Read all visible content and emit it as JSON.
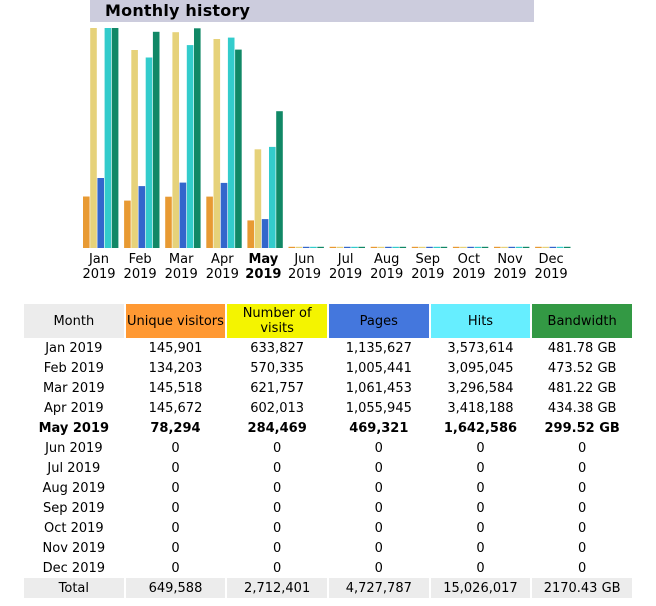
{
  "header": {
    "title": "Monthly history"
  },
  "chart_data": {
    "type": "bar",
    "categories": [
      "Jan 2019",
      "Feb 2019",
      "Mar 2019",
      "Apr 2019",
      "May 2019",
      "Jun 2019",
      "Jul 2019",
      "Aug 2019",
      "Sep 2019",
      "Oct 2019",
      "Nov 2019",
      "Dec 2019"
    ],
    "series": [
      {
        "name": "Unique visitors",
        "color": "#e89a33",
        "values": [
          145901,
          134203,
          145518,
          145672,
          78294,
          0,
          0,
          0,
          0,
          0,
          0,
          0
        ]
      },
      {
        "name": "Number of visits",
        "color": "#e6d27a",
        "values": [
          633827,
          570335,
          621757,
          602013,
          284469,
          0,
          0,
          0,
          0,
          0,
          0,
          0
        ]
      },
      {
        "name": "Pages",
        "color": "#3366cc",
        "values": [
          1135627,
          1005441,
          1061453,
          1055945,
          469321,
          0,
          0,
          0,
          0,
          0,
          0,
          0
        ]
      },
      {
        "name": "Hits",
        "color": "#33cccc",
        "values": [
          3573614,
          3095045,
          3296584,
          3418188,
          1642586,
          0,
          0,
          0,
          0,
          0,
          0,
          0
        ]
      },
      {
        "name": "Bandwidth",
        "color": "#118866",
        "values": [
          481.78,
          473.52,
          481.22,
          434.38,
          299.52,
          0,
          0,
          0,
          0,
          0,
          0,
          0
        ]
      }
    ],
    "current_month": "May 2019"
  },
  "months": [
    {
      "short": "Jan",
      "year": "2019"
    },
    {
      "short": "Feb",
      "year": "2019"
    },
    {
      "short": "Mar",
      "year": "2019"
    },
    {
      "short": "Apr",
      "year": "2019"
    },
    {
      "short": "May",
      "year": "2019",
      "current": true
    },
    {
      "short": "Jun",
      "year": "2019"
    },
    {
      "short": "Jul",
      "year": "2019"
    },
    {
      "short": "Aug",
      "year": "2019"
    },
    {
      "short": "Sep",
      "year": "2019"
    },
    {
      "short": "Oct",
      "year": "2019"
    },
    {
      "short": "Nov",
      "year": "2019"
    },
    {
      "short": "Dec",
      "year": "2019"
    }
  ],
  "table": {
    "headers": {
      "month": "Month",
      "visitors": "Unique visitors",
      "visits": "Number of visits",
      "pages": "Pages",
      "hits": "Hits",
      "bandwidth": "Bandwidth"
    },
    "colors": {
      "month": "#ececec",
      "visitors": "#ff9933",
      "visits": "#f4f400",
      "pages": "#4477dd",
      "hits": "#66eeff",
      "bandwidth": "#339944"
    },
    "rows": [
      {
        "month": "Jan 2019",
        "visitors": "145,901",
        "visits": "633,827",
        "pages": "1,135,627",
        "hits": "3,573,614",
        "bandwidth": "481.78 GB"
      },
      {
        "month": "Feb 2019",
        "visitors": "134,203",
        "visits": "570,335",
        "pages": "1,005,441",
        "hits": "3,095,045",
        "bandwidth": "473.52 GB"
      },
      {
        "month": "Mar 2019",
        "visitors": "145,518",
        "visits": "621,757",
        "pages": "1,061,453",
        "hits": "3,296,584",
        "bandwidth": "481.22 GB"
      },
      {
        "month": "Apr 2019",
        "visitors": "145,672",
        "visits": "602,013",
        "pages": "1,055,945",
        "hits": "3,418,188",
        "bandwidth": "434.38 GB"
      },
      {
        "month": "May 2019",
        "visitors": "78,294",
        "visits": "284,469",
        "pages": "469,321",
        "hits": "1,642,586",
        "bandwidth": "299.52 GB",
        "bold": true
      },
      {
        "month": "Jun 2019",
        "visitors": "0",
        "visits": "0",
        "pages": "0",
        "hits": "0",
        "bandwidth": "0"
      },
      {
        "month": "Jul 2019",
        "visitors": "0",
        "visits": "0",
        "pages": "0",
        "hits": "0",
        "bandwidth": "0"
      },
      {
        "month": "Aug 2019",
        "visitors": "0",
        "visits": "0",
        "pages": "0",
        "hits": "0",
        "bandwidth": "0"
      },
      {
        "month": "Sep 2019",
        "visitors": "0",
        "visits": "0",
        "pages": "0",
        "hits": "0",
        "bandwidth": "0"
      },
      {
        "month": "Oct 2019",
        "visitors": "0",
        "visits": "0",
        "pages": "0",
        "hits": "0",
        "bandwidth": "0"
      },
      {
        "month": "Nov 2019",
        "visitors": "0",
        "visits": "0",
        "pages": "0",
        "hits": "0",
        "bandwidth": "0"
      },
      {
        "month": "Dec 2019",
        "visitors": "0",
        "visits": "0",
        "pages": "0",
        "hits": "0",
        "bandwidth": "0"
      }
    ],
    "total": {
      "label": "Total",
      "visitors": "649,588",
      "visits": "2,712,401",
      "pages": "4,727,787",
      "hits": "15,026,017",
      "bandwidth": "2170.43 GB"
    }
  }
}
